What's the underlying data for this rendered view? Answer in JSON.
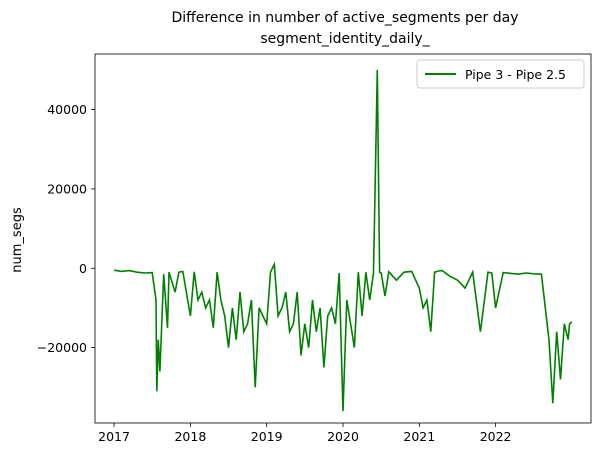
{
  "chart_data": {
    "type": "line",
    "title": "Difference in number of active_segments per day",
    "subtitle": "segment_identity_daily_",
    "xlabel": "",
    "ylabel": "num_segs",
    "xlim": [
      2016.75,
      2023.25
    ],
    "ylim": [
      -39000,
      54000
    ],
    "xticks": [
      2017,
      2018,
      2019,
      2020,
      2021,
      2022
    ],
    "xtick_labels": [
      "2017",
      "2018",
      "2019",
      "2020",
      "2021",
      "2022"
    ],
    "yticks": [
      -20000,
      0,
      20000,
      40000
    ],
    "ytick_labels": [
      "−20000",
      "0",
      "20000",
      "40000"
    ],
    "grid": false,
    "legend_position": "top-right",
    "series": [
      {
        "name": "Pipe 3 - Pipe 2.5",
        "color": "#008000",
        "x": [
          2017.0,
          2017.1,
          2017.2,
          2017.3,
          2017.4,
          2017.5,
          2017.55,
          2017.56,
          2017.58,
          2017.6,
          2017.65,
          2017.7,
          2017.72,
          2017.8,
          2017.85,
          2017.9,
          2018.0,
          2018.05,
          2018.1,
          2018.15,
          2018.2,
          2018.25,
          2018.3,
          2018.35,
          2018.4,
          2018.45,
          2018.5,
          2018.55,
          2018.6,
          2018.65,
          2018.7,
          2018.75,
          2018.8,
          2018.85,
          2018.9,
          2018.95,
          2019.0,
          2019.05,
          2019.1,
          2019.15,
          2019.2,
          2019.25,
          2019.3,
          2019.35,
          2019.4,
          2019.45,
          2019.5,
          2019.55,
          2019.6,
          2019.65,
          2019.7,
          2019.75,
          2019.8,
          2019.85,
          2019.9,
          2019.95,
          2020.0,
          2020.05,
          2020.1,
          2020.15,
          2020.2,
          2020.25,
          2020.3,
          2020.35,
          2020.4,
          2020.45,
          2020.48,
          2020.5,
          2020.55,
          2020.6,
          2020.7,
          2020.8,
          2020.9,
          2021.0,
          2021.05,
          2021.1,
          2021.15,
          2021.2,
          2021.25,
          2021.3,
          2021.4,
          2021.5,
          2021.6,
          2021.7,
          2021.8,
          2021.9,
          2021.95,
          2022.0,
          2022.1,
          2022.2,
          2022.3,
          2022.4,
          2022.5,
          2022.6,
          2022.7,
          2022.75,
          2022.8,
          2022.85,
          2022.9,
          2022.95,
          2022.97,
          2023.0
        ],
        "y": [
          -500,
          -800,
          -600,
          -1000,
          -1200,
          -1100,
          -8000,
          -31000,
          -18000,
          -26000,
          -1500,
          -15000,
          -1000,
          -6000,
          -1000,
          -800,
          -12000,
          -900,
          -8000,
          -6000,
          -10000,
          -8000,
          -15000,
          -1000,
          -8000,
          -12000,
          -20000,
          -10000,
          -18000,
          -6000,
          -16000,
          -14000,
          -8000,
          -30000,
          -10000,
          -12000,
          -14000,
          -1000,
          1000,
          -12000,
          -10000,
          -6000,
          -16000,
          -14000,
          -6000,
          -22000,
          -14000,
          -20000,
          -8000,
          -16000,
          -10000,
          -25000,
          -12000,
          -10000,
          -14000,
          -1200,
          -36000,
          -8000,
          -14000,
          -20000,
          -1000,
          -12000,
          -1000,
          -8000,
          -1200,
          50000,
          -1000,
          -1200,
          -7000,
          -900,
          -3000,
          -1000,
          -800,
          -5000,
          -10000,
          -8000,
          -16000,
          -1000,
          -700,
          -600,
          -2000,
          -3000,
          -5000,
          -1000,
          -16000,
          -1000,
          -1200,
          -10000,
          -1100,
          -1300,
          -1500,
          -1200,
          -1400,
          -1500,
          -18000,
          -34000,
          -16000,
          -28000,
          -14000,
          -18000,
          -14000,
          -13500
        ]
      }
    ]
  }
}
